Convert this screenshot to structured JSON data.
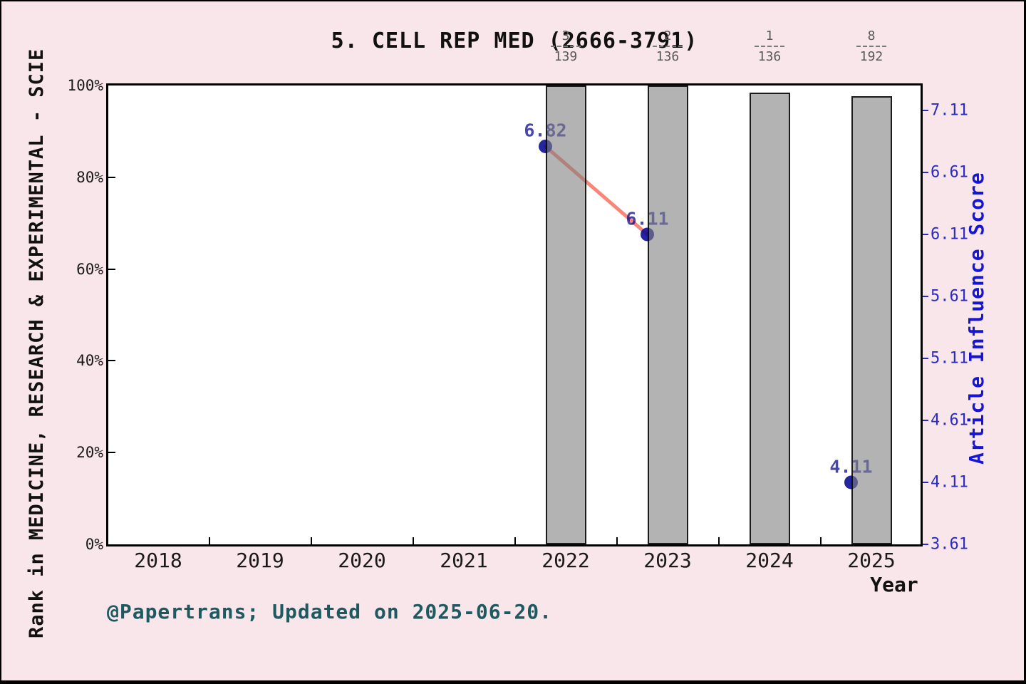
{
  "title": "5. CELL REP MED (2666-3791)",
  "footer": "@Papertrans; Updated on 2025-06-20.",
  "left_axis": {
    "label": "Rank in MEDICINE, RESEARCH & EXPERIMENTAL - SCIE",
    "ticks": [
      "100%",
      "80%",
      "60%",
      "40%",
      "20%",
      "0%"
    ]
  },
  "right_axis": {
    "label": "Article Influence Score",
    "ticks": [
      "7.11",
      "6.61",
      "6.11",
      "5.61",
      "5.11",
      "4.61",
      "4.11",
      "3.61"
    ]
  },
  "x_axis": {
    "label": "Year",
    "ticks": [
      "2018",
      "2019",
      "2020",
      "2021",
      "2022",
      "2023",
      "2024",
      "2025"
    ]
  },
  "chart_data": {
    "type": "bar",
    "subtype": "dual-axis bar + scatter-line",
    "title": "5. CELL REP MED (2666-3791)",
    "xlabel": "Year",
    "x_range": [
      2018,
      2025
    ],
    "left_axis": {
      "ylabel": "Rank in MEDICINE, RESEARCH & EXPERIMENTAL - SCIE",
      "ylim": [
        0,
        100
      ],
      "unit": "%",
      "grid": false
    },
    "right_axis": {
      "ylabel": "Article Influence Score",
      "ylim": [
        3.61,
        7.31
      ],
      "tick_step": 0.5
    },
    "series": [
      {
        "name": "Rank percentile",
        "type": "bar",
        "axis": "left",
        "color": "gray-translucent",
        "points": [
          {
            "year": 2022,
            "height_pct": 100.0,
            "rank": "3",
            "total": "139"
          },
          {
            "year": 2023,
            "height_pct": 100.0,
            "rank": "2",
            "total": "136"
          },
          {
            "year": 2024,
            "height_pct": 98.4,
            "rank": "1",
            "total": "136"
          },
          {
            "year": 2025,
            "height_pct": 97.6,
            "rank": "8",
            "total": "192"
          }
        ]
      },
      {
        "name": "Article Influence Score",
        "type": "scatter-line",
        "axis": "right",
        "line_color": "#fa8072",
        "dot_color": "#0d0d94",
        "points": [
          {
            "year": 2022,
            "value": 6.82,
            "label": "6.82"
          },
          {
            "year": 2023,
            "value": 6.11,
            "label": "6.11"
          },
          {
            "year": 2025,
            "value": 4.11,
            "label": "4.11"
          }
        ],
        "connected_segments": [
          [
            2022,
            2023
          ]
        ]
      }
    ]
  },
  "colors": {
    "figure_bg": "#f9e6eb",
    "plot_bg": "#ffffff",
    "bar_fill": "rgba(128,128,128,0.6)",
    "bar_edge": "rgba(0,0,0,0.85)",
    "line": "#fa8072",
    "dot": "#0d0d94",
    "point_label": "#4545a8",
    "right_axis_text": "#2a2ac4",
    "right_axis_title": "#1515d6",
    "fraction_text": "#585858",
    "footer_text": "#1d5a60"
  }
}
